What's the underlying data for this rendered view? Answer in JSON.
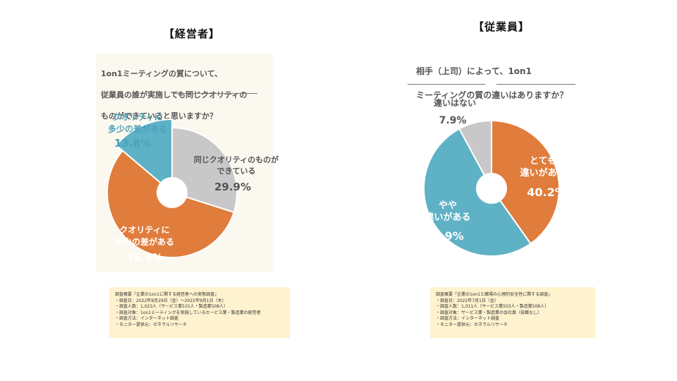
{
  "left": {
    "heading": "【経営者】",
    "question": [
      "1on1ミーティングの質について、",
      "従業員の誰が実施しても同じクオリティの",
      "ものができていると思いますか？"
    ],
    "note_title": "調査概要『企業の1on1に関する経営者への実態調査』",
    "note_lines": [
      "・調査日：2022年8月29日（金）〜2022年9月1日（木）",
      "・調査人数：1,023人（サービス業515人・製造業508人）",
      "・調査対象：1on1ミーティングを実施しているセービス業・製造業の経営者",
      "・調査方法：インターネット調査",
      "・モニター提供元：ゼネラルリサーチ"
    ]
  },
  "right": {
    "heading": "【従業員】",
    "question": [
      "相手（上司）によって、1on1",
      "ミーティングの質の違いはありますか？"
    ],
    "note_title": "調査概要『企業の1on1と職場の心理的安全性に関する調査』",
    "note_lines": [
      "・調査日：2022年7月1日（金）",
      "・調査人数：1,011人（サービス業503人・製造業508人）",
      "・調査対象：サービス業・製造業の会社員（役職なし）",
      "・調査方法：インターネット調査",
      "・モニター提供元：ゼネラルリサーチ"
    ]
  },
  "chart_data": [
    {
      "type": "pie",
      "title": "【経営者】",
      "slices": [
        {
          "label": "同じクオリティのものができている",
          "label_lines": [
            "同じクオリティのものが",
            "できている"
          ],
          "value": 29.9,
          "value_text": "29.9%",
          "color": "#c8c8c8"
        },
        {
          "label": "クオリティに多少の差がある",
          "label_lines": [
            "クオリティに",
            "多少の差がある"
          ],
          "value": 56.3,
          "value_text": "56.3%",
          "color": "#e07d3c"
        },
        {
          "label": "クオリティに多少の差がある",
          "label_lines": [
            "クオリティに",
            "多少の差がある"
          ],
          "value": 13.8,
          "value_text": "13.8%",
          "color": "#5fb1c6"
        }
      ]
    },
    {
      "type": "pie",
      "title": "【従業員】",
      "slices": [
        {
          "label": "とても違いがある",
          "label_lines": [
            "とても",
            "違いがある"
          ],
          "value": 40.2,
          "value_text": "40.2%",
          "color": "#e07d3c"
        },
        {
          "label": "やや違いがある",
          "label_lines": [
            "やや",
            "違いがある"
          ],
          "value": 51.9,
          "value_text": "51.9%",
          "color": "#5fb1c6"
        },
        {
          "label": "違いはない",
          "label_lines": [
            "違いはない"
          ],
          "value": 7.9,
          "value_text": "7.9%",
          "color": "#c8c8c8"
        }
      ]
    }
  ]
}
